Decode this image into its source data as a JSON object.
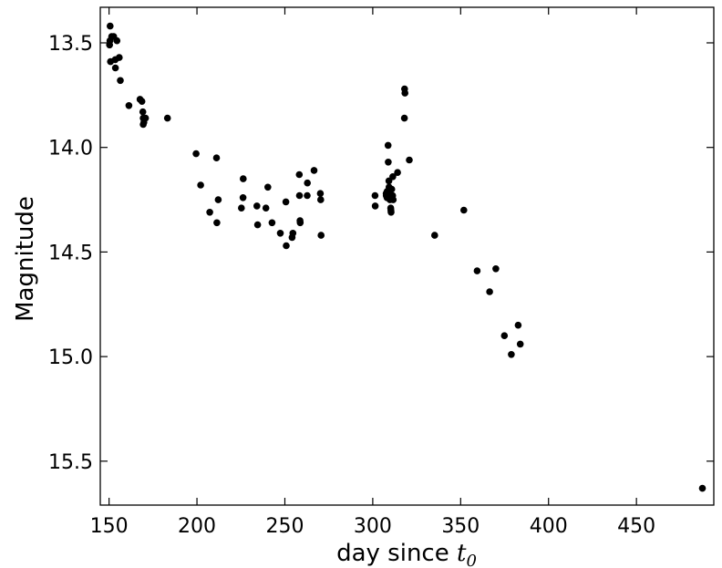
{
  "chart_data": {
    "type": "scatter",
    "xlabel": "day since ",
    "xlabel_symbol": "t",
    "xlabel_subscript": "0",
    "ylabel": "Magnitude",
    "xlim": [
      145,
      494
    ],
    "ylim": [
      15.71,
      13.33
    ],
    "y_inverted": true,
    "grid": false,
    "x_ticks": [
      150,
      200,
      250,
      300,
      350,
      400,
      450
    ],
    "y_ticks": [
      13.5,
      14.0,
      14.5,
      15.0,
      15.5
    ],
    "x_tick_labels": [
      "150",
      "200",
      "250",
      "300",
      "350",
      "400",
      "450"
    ],
    "y_tick_labels": [
      "13.5",
      "14.0",
      "14.5",
      "15.0",
      "15.5"
    ],
    "marker_color": "#000000",
    "points": [
      [
        150.6,
        13.42
      ],
      [
        150.5,
        13.49
      ],
      [
        150.3,
        13.51
      ],
      [
        151.5,
        13.47
      ],
      [
        150.8,
        13.59
      ],
      [
        152.6,
        13.47
      ],
      [
        154.5,
        13.49
      ],
      [
        153.5,
        13.58
      ],
      [
        153.6,
        13.62
      ],
      [
        155.8,
        13.57
      ],
      [
        156.4,
        13.68
      ],
      [
        161.3,
        13.8
      ],
      [
        167.6,
        13.77
      ],
      [
        168.7,
        13.78
      ],
      [
        169.2,
        13.83
      ],
      [
        169.4,
        13.86
      ],
      [
        170.7,
        13.86
      ],
      [
        169.4,
        13.89
      ],
      [
        169.8,
        13.88
      ],
      [
        183.2,
        13.86
      ],
      [
        199.5,
        14.03
      ],
      [
        202.1,
        14.18
      ],
      [
        207.3,
        14.31
      ],
      [
        211.1,
        14.05
      ],
      [
        211.3,
        14.36
      ],
      [
        212.1,
        14.25
      ],
      [
        225.3,
        14.29
      ],
      [
        226.3,
        14.15
      ],
      [
        226.2,
        14.24
      ],
      [
        234.1,
        14.28
      ],
      [
        234.5,
        14.37
      ],
      [
        239.2,
        14.29
      ],
      [
        240.3,
        14.19
      ],
      [
        242.7,
        14.36
      ],
      [
        247.4,
        14.41
      ],
      [
        250.6,
        14.26
      ],
      [
        250.8,
        14.47
      ],
      [
        254.1,
        14.43
      ],
      [
        254.6,
        14.41
      ],
      [
        258.2,
        14.13
      ],
      [
        258.3,
        14.23
      ],
      [
        258.6,
        14.35
      ],
      [
        258.7,
        14.36
      ],
      [
        262.8,
        14.17
      ],
      [
        262.7,
        14.23
      ],
      [
        266.6,
        14.11
      ],
      [
        270.2,
        14.22
      ],
      [
        270.4,
        14.25
      ],
      [
        270.6,
        14.42
      ],
      [
        301.3,
        14.23
      ],
      [
        301.4,
        14.28
      ],
      [
        307.6,
        14.22
      ],
      [
        307.7,
        14.23
      ],
      [
        308.1,
        14.24
      ],
      [
        308.2,
        14.21
      ],
      [
        308.7,
        13.99
      ],
      [
        308.8,
        14.07
      ],
      [
        309.2,
        14.16
      ],
      [
        309.3,
        14.19
      ],
      [
        309.6,
        14.22
      ],
      [
        309.8,
        14.25
      ],
      [
        310.2,
        14.29
      ],
      [
        310.3,
        14.3
      ],
      [
        310.4,
        14.31
      ],
      [
        310.8,
        14.2
      ],
      [
        311.3,
        14.23
      ],
      [
        311.6,
        14.25
      ],
      [
        311.4,
        14.14
      ],
      [
        314.1,
        14.12
      ],
      [
        318.1,
        13.72
      ],
      [
        318.3,
        13.74
      ],
      [
        318.0,
        13.86
      ],
      [
        320.8,
        14.06
      ],
      [
        335.2,
        14.42
      ],
      [
        351.8,
        14.3
      ],
      [
        359.4,
        14.59
      ],
      [
        366.5,
        14.69
      ],
      [
        370.0,
        14.58
      ],
      [
        374.9,
        14.9
      ],
      [
        378.8,
        14.99
      ],
      [
        382.7,
        14.85
      ],
      [
        383.9,
        14.94
      ],
      [
        487.5,
        15.63
      ]
    ]
  }
}
